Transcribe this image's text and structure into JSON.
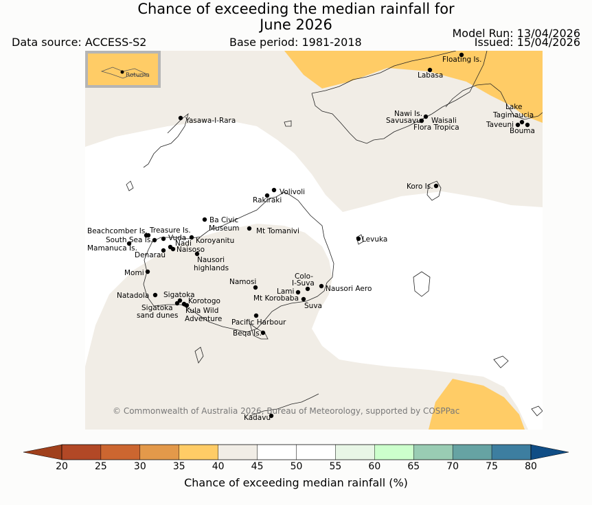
{
  "header": {
    "title_line1": "Chance of exceeding the median rainfall for",
    "title_line2": "June 2026",
    "data_source": "Data source: ACCESS-S2",
    "base_period": "Base period: 1981-2018",
    "model_run": "Model Run: 13/04/2026",
    "issued": "Issued: 15/04/2026"
  },
  "inset": {
    "label": "Rotuma"
  },
  "copyright": "© Commonwealth of Australia 2026, Bureau of Meteorology, supported by COSPPac",
  "places": {
    "floating": "Floating Is.",
    "labasa": "Labasa",
    "nawi": "Nawi Is.",
    "savusavu": "Savusavu",
    "waisali": "Waisali",
    "flora": "Flora Tropica",
    "lake1": "Lake",
    "lake2": "Tagimaucia",
    "taveuni": "Taveuni",
    "bouma": "Bouma",
    "yasawa": "Yasawa-I-Rara",
    "koro": "Koro Is.",
    "volivoli": "Volivoli",
    "rakiraki": "Rakiraki",
    "bacivic1": "Ba Civic",
    "bacivic2": "Museum",
    "tomanivi": "Mt Tomanivi",
    "levuka": "Levuka",
    "beachcomber": "Beachcomber Is.",
    "treasure": "Treasure Is.",
    "southsea": "South Sea Is.",
    "vuda": "Vuda",
    "nadi": "Nadi",
    "koroyanitu": "Koroyanitu",
    "mamanuca": "Mamanuca Is.",
    "naisoso": "Naisoso",
    "denarau": "Denarau",
    "nausori_h1": "Nausori",
    "nausori_h2": "highlands",
    "momi": "Momi",
    "namosi": "Namosi",
    "colo1": "Colo-",
    "colo2": "I-Suva",
    "lami": "Lami",
    "nausori_aero": "Nausori Aero",
    "korobaba": "Mt Korobaba",
    "suva": "Suva",
    "natadola": "Natadola",
    "sigatoka": "Sigatoka",
    "korotogo": "Korotogo",
    "dunes1": "Sigatoka",
    "dunes2": "sand dunes",
    "kula1": "Kula Wild",
    "kula2": "Adventure",
    "pacific_harbour": "Pacific Harbour",
    "beqa": "Beqa Is.",
    "kadavu": "Kadavu"
  },
  "colorbar": {
    "title": "Chance of exceeding median rainfall (%)",
    "ticks": [
      "20",
      "25",
      "30",
      "35",
      "40",
      "45",
      "50",
      "55",
      "60",
      "65",
      "70",
      "75",
      "80"
    ],
    "colors": [
      "#a0401c",
      "#b24826",
      "#cc6630",
      "#e3994a",
      "#ffcc66",
      "#f1ede6",
      "#ffffff",
      "#ffffff",
      "#e8f6e6",
      "#ccffcc",
      "#99ccb3",
      "#66a3a3",
      "#3d7ea0",
      "#104d85"
    ]
  },
  "legend_colors": {
    "below": "#ffcc66",
    "near": "#f1ede6",
    "above": "#ffffff",
    "coast": "#222222"
  }
}
